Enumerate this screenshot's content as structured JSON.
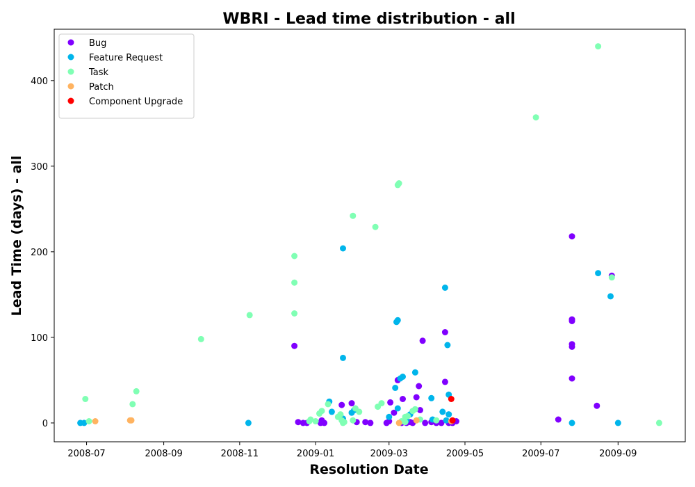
{
  "chart_data": {
    "type": "scatter",
    "title": "WBRI - Lead time distribution - all",
    "xlabel": "Resolution Date",
    "ylabel": "Lead Time (days) - all",
    "xlim": [
      "2008-06-05",
      "2009-10-25"
    ],
    "ylim": [
      -22,
      460
    ],
    "x_ticks": [
      "2008-07",
      "2008-09",
      "2008-11",
      "2009-01",
      "2009-03",
      "2009-05",
      "2009-07",
      "2009-09"
    ],
    "y_ticks": [
      0,
      100,
      200,
      300,
      400
    ],
    "grid": false,
    "legend_position": "top-left",
    "series": [
      {
        "name": "Bug",
        "color": "#8000ff",
        "points": [
          [
            "2008-12-15",
            90
          ],
          [
            "2008-12-18",
            1
          ],
          [
            "2008-12-22",
            0
          ],
          [
            "2008-12-25",
            0
          ],
          [
            "2009-01-05",
            0
          ],
          [
            "2009-01-06",
            3
          ],
          [
            "2009-01-08",
            0
          ],
          [
            "2009-01-22",
            21
          ],
          [
            "2009-01-30",
            23
          ],
          [
            "2009-02-03",
            1
          ],
          [
            "2009-02-10",
            1
          ],
          [
            "2009-02-14",
            0
          ],
          [
            "2009-02-27",
            0
          ],
          [
            "2009-03-01",
            2
          ],
          [
            "2009-03-02",
            24
          ],
          [
            "2009-03-05",
            12
          ],
          [
            "2009-03-08",
            50
          ],
          [
            "2009-03-11",
            0
          ],
          [
            "2009-03-12",
            28
          ],
          [
            "2009-03-15",
            0
          ],
          [
            "2009-03-18",
            1
          ],
          [
            "2009-03-20",
            0
          ],
          [
            "2009-03-23",
            30
          ],
          [
            "2009-03-25",
            43
          ],
          [
            "2009-03-26",
            15
          ],
          [
            "2009-03-28",
            96
          ],
          [
            "2009-03-30",
            0
          ],
          [
            "2009-04-04",
            1
          ],
          [
            "2009-04-08",
            0
          ],
          [
            "2009-04-12",
            0
          ],
          [
            "2009-04-15",
            48
          ],
          [
            "2009-04-15",
            106
          ],
          [
            "2009-04-18",
            0
          ],
          [
            "2009-04-21",
            0
          ],
          [
            "2009-04-24",
            2
          ],
          [
            "2009-07-15",
            4
          ],
          [
            "2009-07-26",
            218
          ],
          [
            "2009-07-26",
            121
          ],
          [
            "2009-07-26",
            119
          ],
          [
            "2009-07-26",
            92
          ],
          [
            "2009-07-26",
            89
          ],
          [
            "2009-07-26",
            52
          ],
          [
            "2009-08-15",
            20
          ],
          [
            "2009-08-27",
            172
          ]
        ]
      },
      {
        "name": "Feature Request",
        "color": "#00b5eb",
        "points": [
          [
            "2008-06-26",
            0
          ],
          [
            "2008-06-29",
            0
          ],
          [
            "2008-11-08",
            0
          ],
          [
            "2009-01-12",
            25
          ],
          [
            "2009-01-14",
            13
          ],
          [
            "2009-01-23",
            204
          ],
          [
            "2009-01-23",
            76
          ],
          [
            "2009-01-23",
            5
          ],
          [
            "2009-01-30",
            12
          ],
          [
            "2009-02-01",
            15
          ],
          [
            "2009-03-01",
            7
          ],
          [
            "2009-03-06",
            41
          ],
          [
            "2009-03-07",
            118
          ],
          [
            "2009-03-08",
            120
          ],
          [
            "2009-03-08",
            17
          ],
          [
            "2009-03-10",
            52
          ],
          [
            "2009-03-12",
            54
          ],
          [
            "2009-03-15",
            3
          ],
          [
            "2009-03-18",
            10
          ],
          [
            "2009-03-22",
            59
          ],
          [
            "2009-04-04",
            29
          ],
          [
            "2009-04-05",
            4
          ],
          [
            "2009-04-13",
            13
          ],
          [
            "2009-04-15",
            158
          ],
          [
            "2009-04-16",
            3
          ],
          [
            "2009-04-17",
            91
          ],
          [
            "2009-04-18",
            33
          ],
          [
            "2009-04-18",
            10
          ],
          [
            "2009-07-26",
            0
          ],
          [
            "2009-08-16",
            175
          ],
          [
            "2009-08-26",
            148
          ],
          [
            "2009-09-01",
            0
          ]
        ]
      },
      {
        "name": "Task",
        "color": "#80ffb4",
        "points": [
          [
            "2008-06-30",
            28
          ],
          [
            "2008-07-03",
            2
          ],
          [
            "2008-08-07",
            22
          ],
          [
            "2008-08-10",
            37
          ],
          [
            "2008-10-01",
            98
          ],
          [
            "2008-11-09",
            126
          ],
          [
            "2008-12-15",
            195
          ],
          [
            "2008-12-15",
            164
          ],
          [
            "2008-12-15",
            128
          ],
          [
            "2008-12-27",
            2
          ],
          [
            "2008-12-28",
            4
          ],
          [
            "2009-01-01",
            2
          ],
          [
            "2009-01-04",
            11
          ],
          [
            "2009-01-06",
            14
          ],
          [
            "2009-01-11",
            22
          ],
          [
            "2009-01-19",
            7
          ],
          [
            "2009-01-21",
            10
          ],
          [
            "2009-01-22",
            3
          ],
          [
            "2009-01-23",
            0
          ],
          [
            "2009-01-24",
            1
          ],
          [
            "2009-01-31",
            3
          ],
          [
            "2009-01-31",
            242
          ],
          [
            "2009-02-02",
            17
          ],
          [
            "2009-02-05",
            13
          ],
          [
            "2009-02-18",
            229
          ],
          [
            "2009-02-20",
            19
          ],
          [
            "2009-02-23",
            23
          ],
          [
            "2009-03-08",
            278
          ],
          [
            "2009-03-09",
            280
          ],
          [
            "2009-03-11",
            2
          ],
          [
            "2009-03-14",
            1
          ],
          [
            "2009-03-14",
            7
          ],
          [
            "2009-03-16",
            8
          ],
          [
            "2009-03-20",
            14
          ],
          [
            "2009-03-22",
            16
          ],
          [
            "2009-03-26",
            4
          ],
          [
            "2009-04-08",
            3
          ],
          [
            "2009-06-27",
            357
          ],
          [
            "2009-08-16",
            440
          ],
          [
            "2009-08-27",
            170
          ],
          [
            "2009-10-04",
            0
          ]
        ]
      },
      {
        "name": "Patch",
        "color": "#ffb360",
        "points": [
          [
            "2008-07-08",
            2
          ],
          [
            "2008-08-05",
            3
          ],
          [
            "2008-08-06",
            3
          ],
          [
            "2009-03-09",
            0
          ],
          [
            "2009-03-23",
            3
          ],
          [
            "2009-04-20",
            2
          ]
        ]
      },
      {
        "name": "Component Upgrade",
        "color": "#ff0000",
        "points": [
          [
            "2009-04-20",
            28
          ],
          [
            "2009-04-21",
            3
          ]
        ]
      }
    ]
  }
}
